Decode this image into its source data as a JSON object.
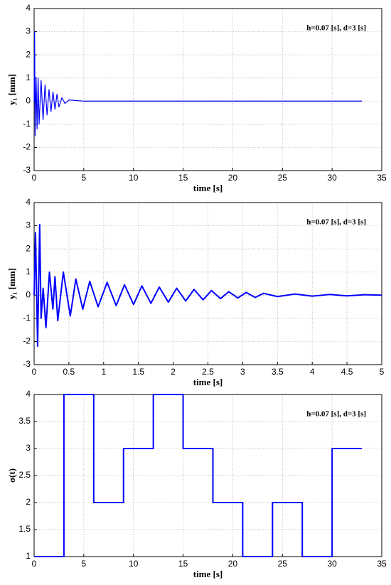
{
  "chart_data": [
    {
      "type": "line",
      "ylabel": "y₁ [mm]",
      "xlabel": "time [s]",
      "annotation": "h=0.07 [s], d=3 [s]",
      "x": [
        0,
        0.05,
        0.1,
        0.2,
        0.3,
        0.4,
        0.5,
        0.7,
        0.9,
        1.1,
        1.3,
        1.5,
        1.7,
        1.9,
        2.1,
        2.3,
        2.5,
        2.8,
        3.1,
        3.5,
        5,
        10,
        15,
        20,
        25,
        30,
        33
      ],
      "values": [
        0,
        3,
        -1.5,
        1,
        -1.2,
        1,
        -1,
        0.9,
        -0.8,
        0.7,
        -0.6,
        0.5,
        -0.45,
        0.4,
        -0.35,
        0.3,
        -0.25,
        0.15,
        -0.1,
        0.05,
        0,
        0,
        0,
        0,
        0,
        0,
        0
      ],
      "color": "#0000ff",
      "xlim": [
        0,
        35
      ],
      "ylim": [
        -3,
        4
      ],
      "xticks": [
        0,
        5,
        10,
        15,
        20,
        25,
        30,
        35
      ],
      "yticks": [
        -3,
        -2,
        -1,
        0,
        1,
        2,
        3,
        4
      ],
      "grid": true
    },
    {
      "type": "line",
      "ylabel": "y₁ [mm]",
      "xlabel": "time [s]",
      "annotation": "h=0.07 [s], d=3 [s]",
      "x": [
        0,
        0.02,
        0.05,
        0.08,
        0.1,
        0.13,
        0.17,
        0.22,
        0.27,
        0.3,
        0.34,
        0.42,
        0.52,
        0.6,
        0.7,
        0.8,
        0.92,
        1.05,
        1.18,
        1.3,
        1.43,
        1.55,
        1.68,
        1.8,
        1.93,
        2.05,
        2.18,
        2.3,
        2.43,
        2.55,
        2.68,
        2.8,
        2.93,
        3.05,
        3.18,
        3.3,
        3.5,
        3.75,
        4,
        4.25,
        4.5,
        4.75,
        5
      ],
      "values": [
        0,
        2.7,
        -2.2,
        3.05,
        -1,
        0.3,
        -1.4,
        1,
        -0.6,
        0.8,
        -1.1,
        1,
        -0.9,
        0.7,
        -0.6,
        0.6,
        -0.5,
        0.55,
        -0.45,
        0.45,
        -0.4,
        0.4,
        -0.35,
        0.35,
        -0.3,
        0.3,
        -0.25,
        0.25,
        -0.2,
        0.2,
        -0.15,
        0.15,
        -0.12,
        0.12,
        -0.1,
        0.08,
        -0.06,
        0.05,
        -0.04,
        0.03,
        -0.03,
        0.02,
        0
      ],
      "color": "#0000ff",
      "xlim": [
        0,
        5
      ],
      "ylim": [
        -3,
        4
      ],
      "xticks": [
        0,
        0.5,
        1,
        1.5,
        2,
        2.5,
        3,
        3.5,
        4,
        4.5,
        5
      ],
      "yticks": [
        -3,
        -2,
        -1,
        0,
        1,
        2,
        3,
        4
      ],
      "grid": true
    },
    {
      "type": "step",
      "ylabel": "σ(t)",
      "xlabel": "time [s]",
      "annotation": "h=0.07 [s], d=3 [s]",
      "x": [
        0,
        3,
        6,
        9,
        12,
        15,
        18,
        21,
        24,
        27,
        30,
        33
      ],
      "values": [
        1,
        4,
        2,
        3,
        4,
        3,
        2,
        1,
        2,
        1,
        3,
        3
      ],
      "color": "#0000ff",
      "xlim": [
        0,
        35
      ],
      "ylim": [
        1,
        4
      ],
      "xticks": [
        0,
        5,
        10,
        15,
        20,
        25,
        30,
        35
      ],
      "yticks": [
        1,
        1.5,
        2,
        2.5,
        3,
        3.5,
        4
      ],
      "grid": true
    }
  ]
}
